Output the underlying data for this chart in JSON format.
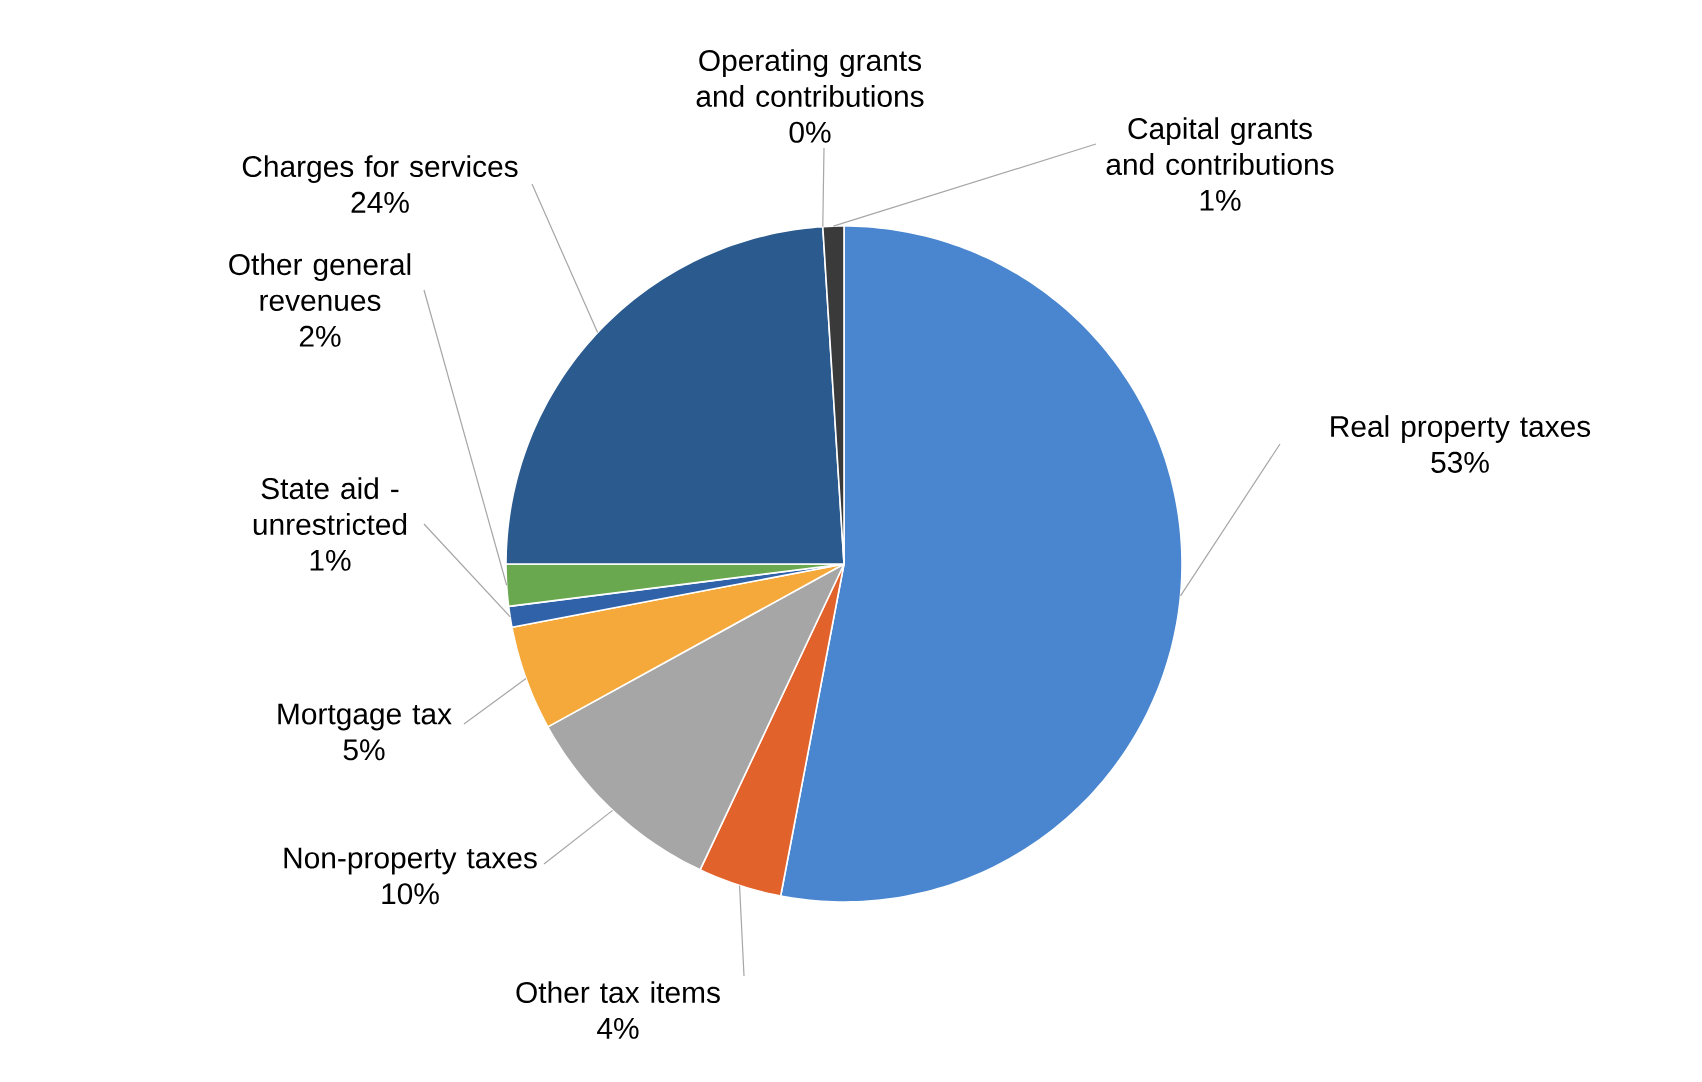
{
  "chart_data": {
    "type": "pie",
    "categories": [
      "Real property taxes",
      "Other tax items",
      "Non-property taxes",
      "Mortgage tax",
      "State aid - unrestricted",
      "Other general revenues",
      "Charges for services",
      "Operating grants and contributions",
      "Capital grants and contributions"
    ],
    "values": [
      53,
      4,
      10,
      5,
      1,
      2,
      24,
      0,
      1
    ],
    "value_labels": [
      "53%",
      "4%",
      "10%",
      "5%",
      "1%",
      "2%",
      "24%",
      "0%",
      "1%"
    ],
    "colors": [
      "#4a86cf",
      "#e2622b",
      "#a6a6a6",
      "#f6a93b",
      "#2f62a8",
      "#6aa84f",
      "#2b5a8f",
      "#6b5a45",
      "#3a3a3a"
    ]
  }
}
